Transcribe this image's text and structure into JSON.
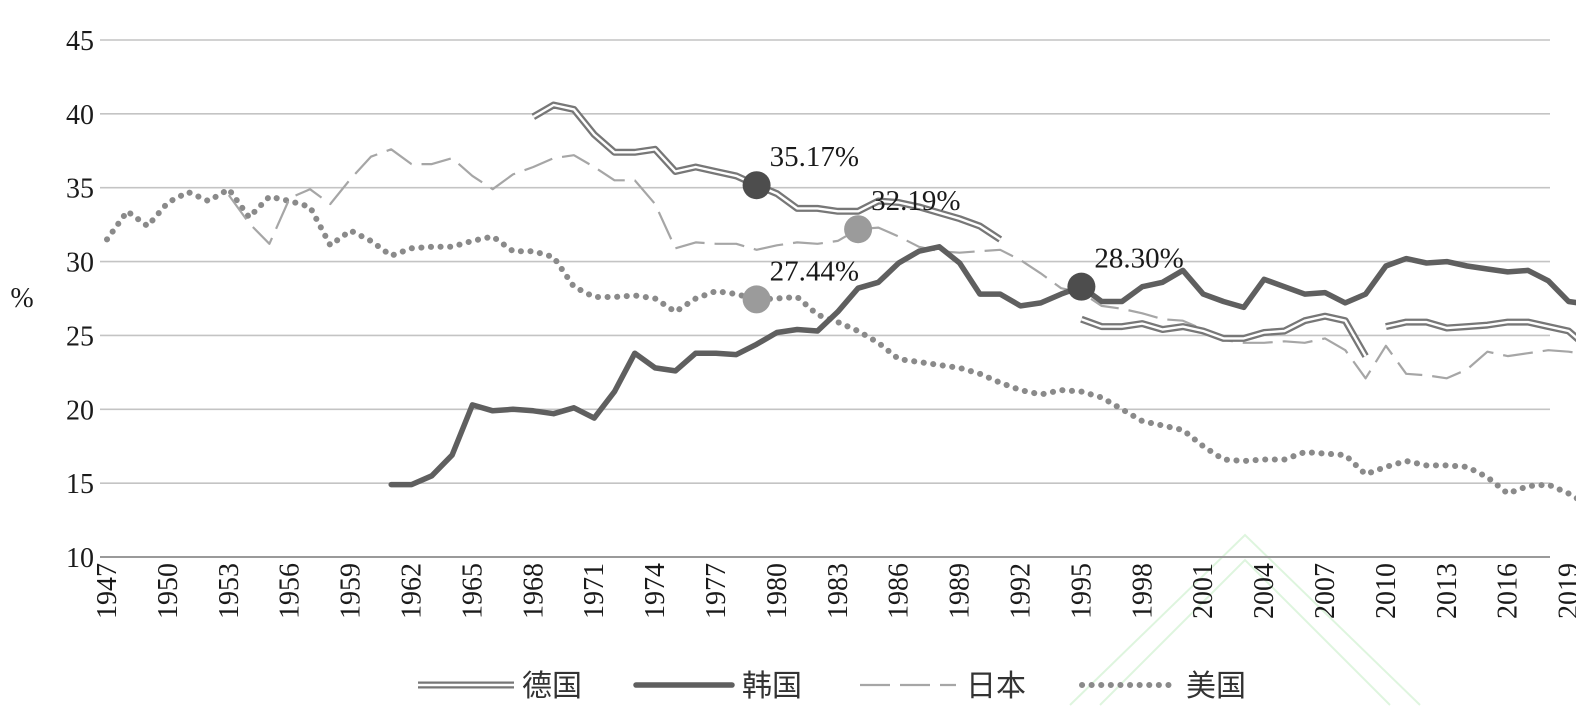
{
  "chart_data": {
    "type": "line",
    "xlabel": "",
    "ylabel": "%",
    "ylim": [
      10,
      45
    ],
    "yticks": [
      "10",
      "15",
      "20",
      "25",
      "30",
      "35",
      "40",
      "45"
    ],
    "xlim": [
      1947,
      2020
    ],
    "xticks": [
      "1947",
      "1950",
      "1953",
      "1956",
      "1959",
      "1962",
      "1965",
      "1968",
      "1971",
      "1974",
      "1977",
      "1980",
      "1983",
      "1986",
      "1989",
      "1992",
      "1995",
      "1998",
      "2001",
      "2004",
      "2007",
      "2010",
      "2013",
      "2016",
      "2019"
    ],
    "grid": "horizontal",
    "legend_position": "bottom",
    "series": [
      {
        "name": "德国",
        "style": "double",
        "color": "#777777",
        "points": [
          [
            1968,
            39.8
          ],
          [
            1969,
            40.6
          ],
          [
            1970,
            40.3
          ],
          [
            1971,
            38.6
          ],
          [
            1972,
            37.4
          ],
          [
            1973,
            37.4
          ],
          [
            1974,
            37.6
          ],
          [
            1975,
            36.1
          ],
          [
            1976,
            36.4
          ],
          [
            1977,
            36.1
          ],
          [
            1978,
            35.8
          ],
          [
            1979,
            35.17
          ],
          [
            1980,
            34.6
          ],
          [
            1981,
            33.6
          ],
          [
            1982,
            33.6
          ],
          [
            1983,
            33.4
          ],
          [
            1984,
            33.4
          ],
          [
            1985,
            34.1
          ],
          [
            1986,
            34.0
          ],
          [
            1987,
            33.7
          ],
          [
            1988,
            33.3
          ],
          [
            1989,
            32.9
          ],
          [
            1990,
            32.4
          ],
          [
            1991,
            31.5
          ],
          null,
          [
            1995,
            26.1
          ],
          [
            1996,
            25.6
          ],
          [
            1997,
            25.6
          ],
          [
            1998,
            25.8
          ],
          [
            1999,
            25.4
          ],
          [
            2000,
            25.6
          ],
          [
            2001,
            25.3
          ],
          [
            2002,
            24.8
          ],
          [
            2003,
            24.8
          ],
          [
            2004,
            25.2
          ],
          [
            2005,
            25.3
          ],
          [
            2006,
            26.0
          ],
          [
            2007,
            26.3
          ],
          [
            2008,
            26.0
          ],
          [
            2009,
            23.6
          ],
          null,
          [
            2010,
            25.6
          ],
          [
            2011,
            25.9
          ],
          [
            2012,
            25.9
          ],
          [
            2013,
            25.5
          ],
          [
            2014,
            25.6
          ],
          [
            2015,
            25.7
          ],
          [
            2016,
            25.9
          ],
          [
            2017,
            25.9
          ],
          [
            2018,
            25.6
          ],
          [
            2019,
            25.3
          ],
          [
            2020,
            24.1
          ]
        ]
      },
      {
        "name": "韩国",
        "style": "solid",
        "color": "#5f5f5f",
        "points": [
          [
            1961,
            14.9
          ],
          [
            1962,
            14.9
          ],
          [
            1963,
            15.5
          ],
          [
            1964,
            16.9
          ],
          [
            1965,
            20.3
          ],
          [
            1966,
            19.9
          ],
          [
            1967,
            20.0
          ],
          [
            1968,
            19.9
          ],
          [
            1969,
            19.7
          ],
          [
            1970,
            20.1
          ],
          [
            1971,
            19.4
          ],
          [
            1972,
            21.2
          ],
          [
            1973,
            23.8
          ],
          [
            1974,
            22.8
          ],
          [
            1975,
            22.6
          ],
          [
            1976,
            23.8
          ],
          [
            1977,
            23.8
          ],
          [
            1978,
            23.7
          ],
          [
            1979,
            24.4
          ],
          [
            1980,
            25.2
          ],
          [
            1981,
            25.4
          ],
          [
            1982,
            25.3
          ],
          [
            1983,
            26.6
          ],
          [
            1984,
            28.2
          ],
          [
            1985,
            28.6
          ],
          [
            1986,
            29.9
          ],
          [
            1987,
            30.7
          ],
          [
            1988,
            31.0
          ],
          [
            1989,
            29.9
          ],
          [
            1990,
            27.8
          ],
          [
            1991,
            27.8
          ],
          [
            1992,
            27.0
          ],
          [
            1993,
            27.2
          ],
          [
            1994,
            27.8
          ],
          [
            1995,
            28.3
          ],
          [
            1996,
            27.3
          ],
          [
            1997,
            27.3
          ],
          [
            1998,
            28.3
          ],
          [
            1999,
            28.6
          ],
          [
            2000,
            29.4
          ],
          [
            2001,
            27.8
          ],
          [
            2002,
            27.3
          ],
          [
            2003,
            26.9
          ],
          [
            2004,
            28.8
          ],
          [
            2005,
            28.3
          ],
          [
            2006,
            27.8
          ],
          [
            2007,
            27.9
          ],
          [
            2008,
            27.2
          ],
          [
            2009,
            27.8
          ],
          [
            2010,
            29.7
          ],
          [
            2011,
            30.2
          ],
          [
            2012,
            29.9
          ],
          [
            2013,
            30.0
          ],
          [
            2014,
            29.7
          ],
          [
            2015,
            29.5
          ],
          [
            2016,
            29.3
          ],
          [
            2017,
            29.4
          ],
          [
            2018,
            28.7
          ],
          [
            2019,
            27.3
          ],
          [
            2020,
            27.1
          ]
        ]
      },
      {
        "name": "日本",
        "style": "dashed",
        "color": "#a6a6a6",
        "points": [
          [
            1953,
            34.5
          ],
          [
            1954,
            32.6
          ],
          [
            1955,
            31.2
          ],
          [
            1956,
            34.3
          ],
          [
            1957,
            34.9
          ],
          [
            1958,
            33.9
          ],
          [
            1959,
            35.6
          ],
          [
            1960,
            37.1
          ],
          [
            1961,
            37.6
          ],
          [
            1962,
            36.6
          ],
          [
            1963,
            36.6
          ],
          [
            1964,
            37.0
          ],
          [
            1965,
            35.8
          ],
          [
            1966,
            34.9
          ],
          [
            1967,
            35.9
          ],
          [
            1968,
            36.4
          ],
          [
            1969,
            37.0
          ],
          [
            1970,
            37.2
          ],
          [
            1971,
            36.4
          ],
          [
            1972,
            35.5
          ],
          [
            1973,
            35.5
          ],
          [
            1974,
            33.9
          ],
          [
            1975,
            30.9
          ],
          [
            1976,
            31.3
          ],
          [
            1977,
            31.2
          ],
          [
            1978,
            31.2
          ],
          [
            1979,
            30.8
          ],
          [
            1980,
            31.1
          ],
          [
            1981,
            31.3
          ],
          [
            1982,
            31.2
          ],
          [
            1983,
            31.4
          ],
          [
            1984,
            32.19
          ],
          [
            1985,
            32.3
          ],
          [
            1986,
            31.7
          ],
          [
            1987,
            31.0
          ],
          [
            1988,
            30.7
          ],
          [
            1989,
            30.6
          ],
          [
            1990,
            30.7
          ],
          [
            1991,
            30.8
          ],
          [
            1992,
            30.1
          ],
          [
            1993,
            29.2
          ],
          [
            1994,
            28.2
          ],
          [
            1995,
            27.9
          ],
          [
            1996,
            27.0
          ],
          [
            1997,
            26.8
          ],
          [
            1998,
            26.5
          ],
          [
            1999,
            26.1
          ],
          [
            2000,
            26.0
          ],
          [
            2001,
            25.4
          ],
          [
            2002,
            24.7
          ],
          [
            2003,
            24.5
          ],
          [
            2004,
            24.5
          ],
          [
            2005,
            24.6
          ],
          [
            2006,
            24.5
          ],
          [
            2007,
            24.8
          ],
          [
            2008,
            24.0
          ],
          [
            2009,
            22.1
          ],
          [
            2010,
            24.3
          ],
          [
            2011,
            22.4
          ],
          [
            2012,
            22.3
          ],
          [
            2013,
            22.1
          ],
          [
            2014,
            22.7
          ],
          [
            2015,
            23.9
          ],
          [
            2016,
            23.6
          ],
          [
            2017,
            23.8
          ],
          [
            2018,
            24.0
          ],
          [
            2019,
            23.9
          ],
          [
            2020,
            23.7
          ]
        ]
      },
      {
        "name": "美国",
        "style": "dotted",
        "color": "#8a8a8a",
        "points": [
          [
            1947,
            31.5
          ],
          [
            1948,
            33.4
          ],
          [
            1949,
            32.4
          ],
          [
            1950,
            34.0
          ],
          [
            1951,
            34.7
          ],
          [
            1952,
            34.1
          ],
          [
            1953,
            34.9
          ],
          [
            1954,
            33.0
          ],
          [
            1955,
            34.4
          ],
          [
            1956,
            34.1
          ],
          [
            1957,
            33.7
          ],
          [
            1958,
            31.1
          ],
          [
            1959,
            32.1
          ],
          [
            1960,
            31.4
          ],
          [
            1961,
            30.4
          ],
          [
            1962,
            30.9
          ],
          [
            1963,
            31.0
          ],
          [
            1964,
            31.0
          ],
          [
            1965,
            31.4
          ],
          [
            1966,
            31.7
          ],
          [
            1967,
            30.7
          ],
          [
            1968,
            30.7
          ],
          [
            1969,
            30.3
          ],
          [
            1970,
            28.3
          ],
          [
            1971,
            27.6
          ],
          [
            1972,
            27.6
          ],
          [
            1973,
            27.7
          ],
          [
            1974,
            27.5
          ],
          [
            1975,
            26.6
          ],
          [
            1976,
            27.5
          ],
          [
            1977,
            28.0
          ],
          [
            1978,
            27.8
          ],
          [
            1979,
            27.44
          ],
          [
            1980,
            27.5
          ],
          [
            1981,
            27.6
          ],
          [
            1982,
            26.4
          ],
          [
            1983,
            25.9
          ],
          [
            1984,
            25.3
          ],
          [
            1985,
            24.5
          ],
          [
            1986,
            23.4
          ],
          [
            1987,
            23.2
          ],
          [
            1988,
            23.0
          ],
          [
            1989,
            22.8
          ],
          [
            1990,
            22.4
          ],
          [
            1991,
            21.8
          ],
          [
            1992,
            21.3
          ],
          [
            1993,
            21.0
          ],
          [
            1994,
            21.3
          ],
          [
            1995,
            21.2
          ],
          [
            1996,
            20.8
          ],
          [
            1997,
            20.0
          ],
          [
            1998,
            19.2
          ],
          [
            1999,
            18.9
          ],
          [
            2000,
            18.6
          ],
          [
            2001,
            17.5
          ],
          [
            2002,
            16.6
          ],
          [
            2003,
            16.5
          ],
          [
            2004,
            16.6
          ],
          [
            2005,
            16.6
          ],
          [
            2006,
            17.1
          ],
          [
            2007,
            17.0
          ],
          [
            2008,
            16.9
          ],
          [
            2009,
            15.6
          ],
          [
            2010,
            16.1
          ],
          [
            2011,
            16.5
          ],
          [
            2012,
            16.2
          ],
          [
            2013,
            16.2
          ],
          [
            2014,
            16.1
          ],
          [
            2015,
            15.4
          ],
          [
            2016,
            14.3
          ],
          [
            2017,
            14.8
          ],
          [
            2018,
            14.9
          ],
          [
            2019,
            14.3
          ],
          [
            2020,
            13.5
          ]
        ]
      }
    ],
    "annotations": [
      {
        "text": "35.17%",
        "x": 1979,
        "y": 35.17,
        "marker_color": "#4d4d4d",
        "label_side": "above-right"
      },
      {
        "text": "32.19%",
        "x": 1984,
        "y": 32.19,
        "marker_color": "#9b9b9b",
        "label_side": "above-right"
      },
      {
        "text": "27.44%",
        "x": 1979,
        "y": 27.44,
        "marker_color": "#9b9b9b",
        "label_side": "above-right"
      },
      {
        "text": "28.30%",
        "x": 1995,
        "y": 28.3,
        "marker_color": "#4d4d4d",
        "label_side": "above-right"
      }
    ]
  }
}
